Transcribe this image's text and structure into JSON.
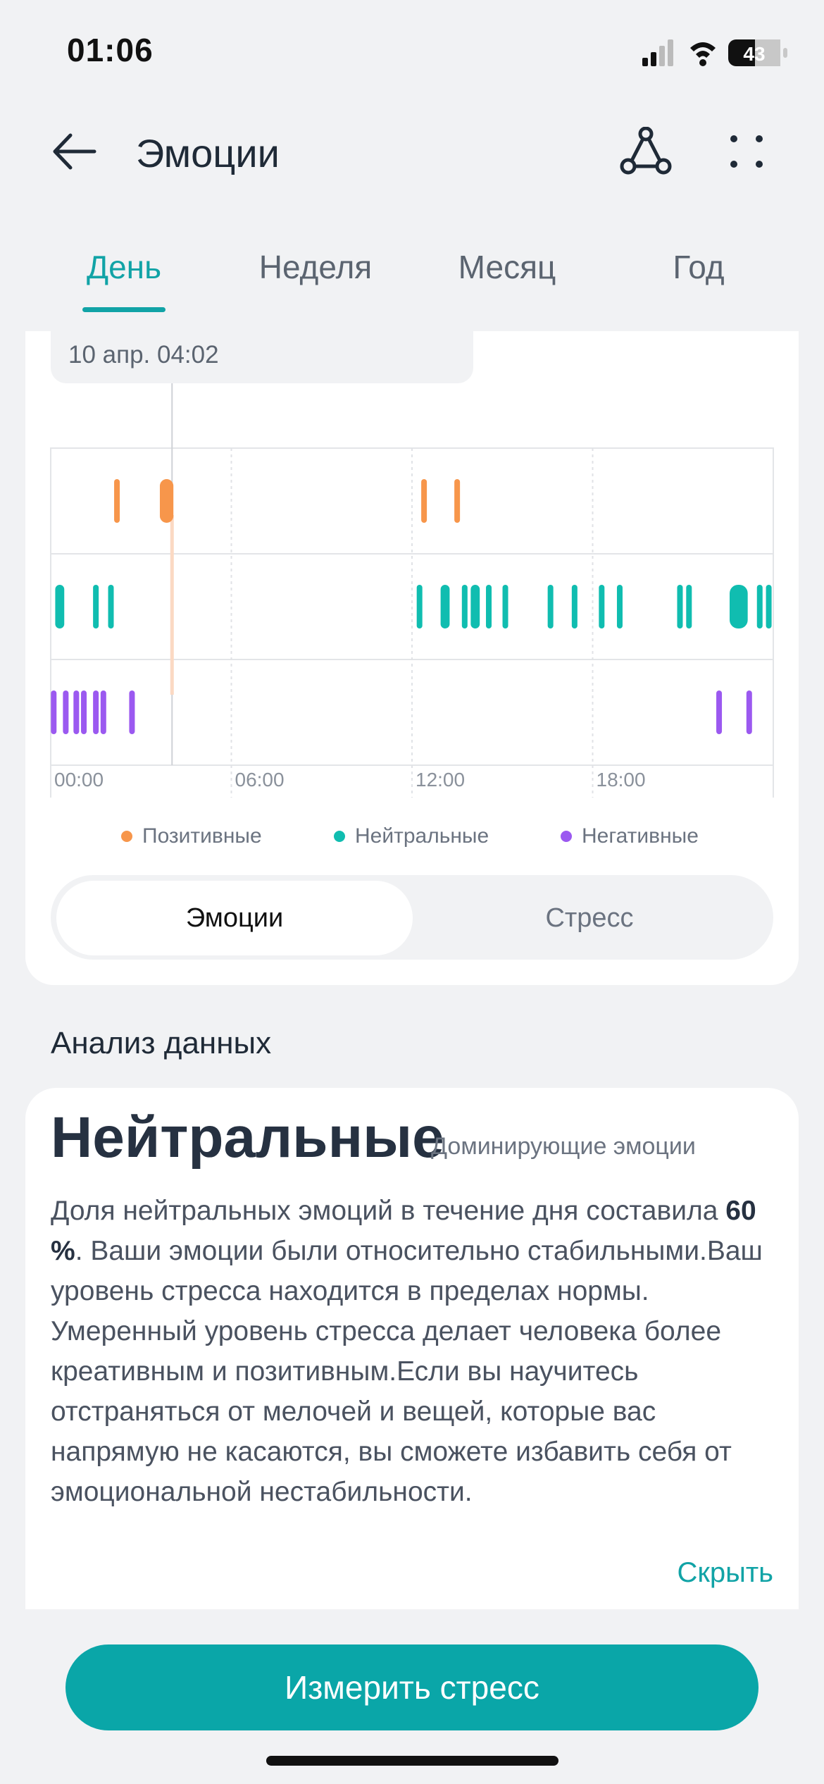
{
  "status_bar": {
    "time": "01:06",
    "battery": "43"
  },
  "header": {
    "title": "Эмоции"
  },
  "tabs": [
    {
      "label": "День",
      "active": true
    },
    {
      "label": "Неделя",
      "active": false
    },
    {
      "label": "Месяц",
      "active": false
    },
    {
      "label": "Год",
      "active": false
    }
  ],
  "tooltip": {
    "text": "10 апр. 04:02"
  },
  "chart_data": {
    "type": "scatter",
    "x_ticks": [
      "00:00",
      "06:00",
      "12:00",
      "18:00"
    ],
    "x_unit": "hours",
    "xlim": [
      0,
      24
    ],
    "selected_time": 4.03,
    "rows": [
      "Позитивные",
      "Нейтральные",
      "Негативные"
    ],
    "series": [
      {
        "name": "Позитивные",
        "color": "#f7964b",
        "marks": [
          {
            "t": 2.2,
            "d": 0.1
          },
          {
            "t": 3.85,
            "d": 0.45
          },
          {
            "t": 12.4,
            "d": 0.1
          },
          {
            "t": 13.5,
            "d": 0.1
          }
        ]
      },
      {
        "name": "Нейтральные",
        "color": "#10bdb0",
        "marks": [
          {
            "t": 0.3,
            "d": 0.3
          },
          {
            "t": 1.5,
            "d": 0.1
          },
          {
            "t": 2.0,
            "d": 0.1
          },
          {
            "t": 12.25,
            "d": 0.1
          },
          {
            "t": 13.1,
            "d": 0.3
          },
          {
            "t": 13.75,
            "d": 0.1
          },
          {
            "t": 14.1,
            "d": 0.3
          },
          {
            "t": 14.55,
            "d": 0.1
          },
          {
            "t": 15.1,
            "d": 0.1
          },
          {
            "t": 16.6,
            "d": 0.1
          },
          {
            "t": 17.4,
            "d": 0.1
          },
          {
            "t": 18.3,
            "d": 0.1
          },
          {
            "t": 18.9,
            "d": 0.1
          },
          {
            "t": 20.9,
            "d": 0.1
          },
          {
            "t": 21.2,
            "d": 0.1
          },
          {
            "t": 22.85,
            "d": 0.6
          },
          {
            "t": 23.55,
            "d": 0.15
          },
          {
            "t": 23.85,
            "d": 0.1
          }
        ]
      },
      {
        "name": "Негативные",
        "color": "#9b59f0",
        "marks": [
          {
            "t": 0.1,
            "d": 0.1
          },
          {
            "t": 0.5,
            "d": 0.1
          },
          {
            "t": 0.85,
            "d": 0.15
          },
          {
            "t": 1.1,
            "d": 0.15
          },
          {
            "t": 1.5,
            "d": 0.15
          },
          {
            "t": 1.75,
            "d": 0.1
          },
          {
            "t": 2.7,
            "d": 0.1
          },
          {
            "t": 22.2,
            "d": 0.1
          },
          {
            "t": 23.2,
            "d": 0.1
          }
        ]
      }
    ],
    "legend": [
      {
        "label": "Позитивные",
        "color": "#f7964b"
      },
      {
        "label": "Нейтральные",
        "color": "#10bdb0"
      },
      {
        "label": "Негативные",
        "color": "#9b59f0"
      }
    ]
  },
  "segment": {
    "emotions": "Эмоции",
    "stress": "Стресс"
  },
  "analysis": {
    "section_title": "Анализ данных",
    "dominant": "Нейтральные",
    "dominant_sub": "Доминирующие эмоции",
    "text_before": "Доля нейтральных эмоций в течение дня составила ",
    "percent": "60 %",
    "text_after": ". Ваши эмоции были относительно стабильными.Ваш уровень стресса находится в пределах нормы. Умеренный уровень стресса делает человека более креативным и позитивным.Если вы научитесь отстраняться от мелочей и вещей, которые вас напрямую не касаются, вы сможете избавить себя от эмоциональной нестабильности.",
    "hide": "Скрыть"
  },
  "measure_button": "Измерить стресс"
}
